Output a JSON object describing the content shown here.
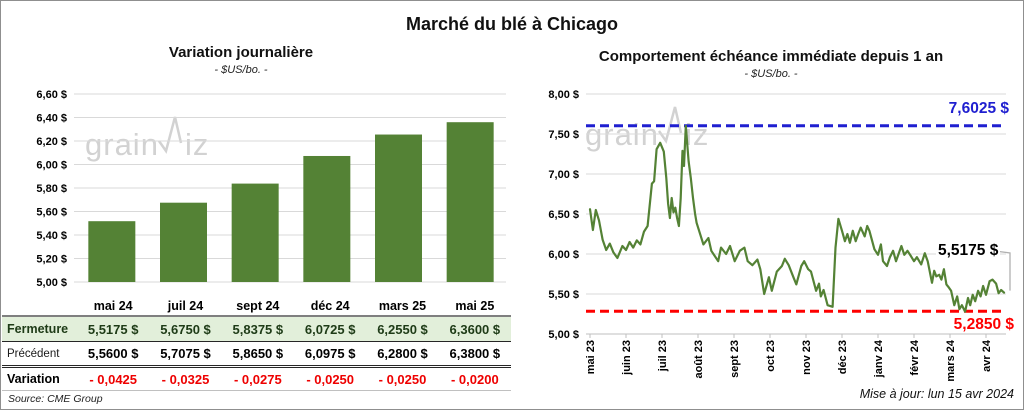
{
  "header": {
    "title": "Marché du blé à Chicago"
  },
  "colors": {
    "green": "#548235",
    "light_green_row": "#e2efda",
    "blue": "#1f1fd0",
    "red": "#fe0000",
    "grid": "#d9d9d9",
    "axis": "#bfbfbf",
    "watermark": "#d2d2d2"
  },
  "watermark": {
    "part1": "grain",
    "part2": "iz"
  },
  "left_chart": {
    "title": "Variation journalière",
    "subtitle": "- $US/bo. -"
  },
  "right_chart": {
    "title": "Comportement échéance immédiate depuis 1 an",
    "subtitle": "- $US/bo. -",
    "max_label": "7,6025 $",
    "last_label": "5,5175 $",
    "min_label": "5,2850 $"
  },
  "footer": {
    "source": "Source: CME Group",
    "updated": "Mise à jour: lun 15 avr 2024"
  },
  "table": {
    "columns": [
      "mai 24",
      "juil 24",
      "sept 24",
      "déc 24",
      "mars 25",
      "mai 25"
    ],
    "rows": [
      {
        "key": "fermeture",
        "label": "Fermeture",
        "values": [
          "5,5175 $",
          "5,6750 $",
          "5,8375 $",
          "6,0725 $",
          "6,2550 $",
          "6,3600 $"
        ]
      },
      {
        "key": "precedent",
        "label": "Précédent",
        "values": [
          "5,5600 $",
          "5,7075 $",
          "5,8650 $",
          "6,0975 $",
          "6,2800 $",
          "6,3800 $"
        ]
      },
      {
        "key": "variation",
        "label": "Variation",
        "values": [
          "- 0,0425",
          "- 0,0325",
          "- 0,0275",
          "- 0,0250",
          "- 0,0250",
          "- 0,0200"
        ]
      }
    ]
  },
  "chart_data": [
    {
      "type": "bar",
      "title": "Variation journalière",
      "ylabel": "- $US/bo. -",
      "categories": [
        "mai 24",
        "juil 24",
        "sept 24",
        "déc 24",
        "mars 25",
        "mai 25"
      ],
      "values": [
        5.5175,
        5.675,
        5.8375,
        6.0725,
        6.255,
        6.36
      ],
      "ylim": [
        5.0,
        6.6
      ],
      "ytick_step": 0.2,
      "grid": true
    },
    {
      "type": "line",
      "title": "Comportement échéance immédiate depuis 1 an",
      "ylabel": "- $US/bo. -",
      "x_ticks": [
        "mai 23",
        "juin 23",
        "juil 23",
        "août 23",
        "sept 23",
        "oct 23",
        "nov 23",
        "déc 23",
        "janv 24",
        "févr 24",
        "mars 24",
        "avr 24"
      ],
      "ylim": [
        5.0,
        8.0
      ],
      "ytick_step": 0.5,
      "max_line": 7.6025,
      "min_line": 5.285,
      "last_value": 5.5175,
      "grid": true,
      "points": [
        [
          0,
          6.56
        ],
        [
          0.08,
          6.3
        ],
        [
          0.16,
          6.55
        ],
        [
          0.25,
          6.42
        ],
        [
          0.35,
          6.18
        ],
        [
          0.45,
          6.05
        ],
        [
          0.55,
          6.13
        ],
        [
          0.65,
          6.02
        ],
        [
          0.76,
          5.95
        ],
        [
          0.9,
          6.1
        ],
        [
          1,
          6.05
        ],
        [
          1.1,
          6.15
        ],
        [
          1.2,
          6.08
        ],
        [
          1.3,
          6.17
        ],
        [
          1.4,
          6.12
        ],
        [
          1.5,
          6.28
        ],
        [
          1.6,
          6.35
        ],
        [
          1.72,
          6.88
        ],
        [
          1.78,
          6.91
        ],
        [
          1.85,
          7.31
        ],
        [
          1.95,
          7.39
        ],
        [
          2.05,
          7.28
        ],
        [
          2.12,
          6.95
        ],
        [
          2.17,
          6.63
        ],
        [
          2.22,
          6.45
        ],
        [
          2.27,
          6.7
        ],
        [
          2.32,
          6.52
        ],
        [
          2.37,
          6.58
        ],
        [
          2.42,
          6.45
        ],
        [
          2.47,
          6.35
        ],
        [
          2.52,
          6.7
        ],
        [
          2.57,
          7.29
        ],
        [
          2.61,
          7.1
        ],
        [
          2.66,
          7.6
        ],
        [
          2.74,
          7.16
        ],
        [
          2.8,
          6.95
        ],
        [
          2.86,
          6.7
        ],
        [
          2.92,
          6.5
        ],
        [
          2.96,
          6.39
        ],
        [
          3.15,
          6.12
        ],
        [
          3.29,
          6.2
        ],
        [
          3.37,
          6.04
        ],
        [
          3.56,
          5.91
        ],
        [
          3.64,
          6.08
        ],
        [
          3.78,
          6.0
        ],
        [
          3.89,
          6.1
        ],
        [
          4.02,
          5.91
        ],
        [
          4.16,
          6.04
        ],
        [
          4.29,
          6.08
        ],
        [
          4.38,
          5.91
        ],
        [
          4.51,
          5.86
        ],
        [
          4.65,
          5.93
        ],
        [
          4.73,
          5.81
        ],
        [
          4.84,
          5.5
        ],
        [
          4.97,
          5.71
        ],
        [
          5.05,
          5.54
        ],
        [
          5.19,
          5.78
        ],
        [
          5.33,
          5.85
        ],
        [
          5.41,
          5.94
        ],
        [
          5.52,
          5.86
        ],
        [
          5.65,
          5.71
        ],
        [
          5.73,
          5.62
        ],
        [
          5.87,
          5.85
        ],
        [
          5.95,
          5.91
        ],
        [
          6.06,
          5.81
        ],
        [
          6.14,
          5.78
        ],
        [
          6.28,
          5.54
        ],
        [
          6.36,
          5.63
        ],
        [
          6.41,
          5.47
        ],
        [
          6.49,
          5.55
        ],
        [
          6.6,
          5.36
        ],
        [
          6.74,
          5.34
        ],
        [
          6.82,
          6.08
        ],
        [
          6.9,
          6.44
        ],
        [
          7,
          6.29
        ],
        [
          7.08,
          6.16
        ],
        [
          7.15,
          6.25
        ],
        [
          7.22,
          6.14
        ],
        [
          7.3,
          6.29
        ],
        [
          7.38,
          6.16
        ],
        [
          7.45,
          6.25
        ],
        [
          7.52,
          6.33
        ],
        [
          7.63,
          6.22
        ],
        [
          7.7,
          6.35
        ],
        [
          7.76,
          6.29
        ],
        [
          7.9,
          6.06
        ],
        [
          8,
          5.99
        ],
        [
          8.08,
          6.12
        ],
        [
          8.14,
          5.91
        ],
        [
          8.25,
          5.85
        ],
        [
          8.33,
          5.96
        ],
        [
          8.42,
          6.04
        ],
        [
          8.5,
          5.91
        ],
        [
          8.65,
          6.1
        ],
        [
          8.73,
          5.99
        ],
        [
          8.82,
          6.04
        ],
        [
          8.92,
          5.97
        ],
        [
          9,
          5.91
        ],
        [
          9.08,
          5.96
        ],
        [
          9.2,
          5.87
        ],
        [
          9.3,
          6.01
        ],
        [
          9.38,
          5.91
        ],
        [
          9.5,
          5.64
        ],
        [
          9.56,
          5.79
        ],
        [
          9.62,
          5.72
        ],
        [
          9.7,
          5.74
        ],
        [
          9.76,
          5.68
        ],
        [
          9.83,
          5.81
        ],
        [
          9.9,
          5.62
        ],
        [
          9.97,
          5.58
        ],
        [
          10.03,
          5.54
        ],
        [
          10.12,
          5.36
        ],
        [
          10.2,
          5.47
        ],
        [
          10.26,
          5.31
        ],
        [
          10.33,
          5.36
        ],
        [
          10.42,
          5.28
        ],
        [
          10.5,
          5.45
        ],
        [
          10.56,
          5.36
        ],
        [
          10.63,
          5.49
        ],
        [
          10.7,
          5.41
        ],
        [
          10.78,
          5.54
        ],
        [
          10.85,
          5.47
        ],
        [
          10.92,
          5.6
        ],
        [
          11,
          5.49
        ],
        [
          11.1,
          5.66
        ],
        [
          11.18,
          5.68
        ],
        [
          11.28,
          5.63
        ],
        [
          11.35,
          5.51
        ],
        [
          11.42,
          5.55
        ],
        [
          11.5,
          5.5175
        ]
      ]
    }
  ]
}
